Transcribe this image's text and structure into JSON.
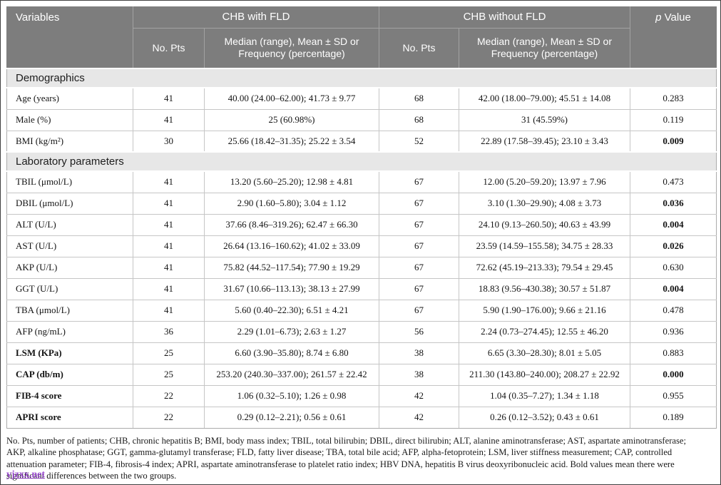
{
  "table": {
    "header": {
      "variables": "Variables",
      "group_with": "CHB with FLD",
      "group_without": "CHB without FLD",
      "p_italic": "p",
      "p_rest": " Value",
      "no_pts": "No. Pts",
      "median_label": "Median (range), Mean ± SD or Frequency (percentage)"
    },
    "sections": [
      {
        "title": "Demographics",
        "rows": [
          {
            "variable": "Age (years)",
            "bold_variable": false,
            "n_fld": "41",
            "val_fld": "40.00 (24.00–62.00); 41.73 ± 9.77",
            "n_nofld": "68",
            "val_nofld": "42.00 (18.00–79.00); 45.51 ± 14.08",
            "p": "0.283",
            "bold_p": false
          },
          {
            "variable": "Male (%)",
            "bold_variable": false,
            "n_fld": "41",
            "val_fld": "25 (60.98%)",
            "n_nofld": "68",
            "val_nofld": "31 (45.59%)",
            "p": "0.119",
            "bold_p": false
          },
          {
            "variable": "BMI (kg/m²)",
            "bold_variable": false,
            "n_fld": "30",
            "val_fld": "25.66 (18.42–31.35); 25.22 ± 3.54",
            "n_nofld": "52",
            "val_nofld": "22.89 (17.58–39.45); 23.10 ± 3.43",
            "p": "0.009",
            "bold_p": true
          }
        ]
      },
      {
        "title": "Laboratory parameters",
        "rows": [
          {
            "variable": "TBIL (μmol/L)",
            "bold_variable": false,
            "n_fld": "41",
            "val_fld": "13.20 (5.60–25.20); 12.98 ± 4.81",
            "n_nofld": "67",
            "val_nofld": "12.00 (5.20–59.20); 13.97 ± 7.96",
            "p": "0.473",
            "bold_p": false
          },
          {
            "variable": "DBIL (μmol/L)",
            "bold_variable": false,
            "n_fld": "41",
            "val_fld": "2.90 (1.60–5.80); 3.04 ± 1.12",
            "n_nofld": "67",
            "val_nofld": "3.10 (1.30–29.90); 4.08 ± 3.73",
            "p": "0.036",
            "bold_p": true
          },
          {
            "variable": "ALT (U/L)",
            "bold_variable": false,
            "n_fld": "41",
            "val_fld": "37.66 (8.46–319.26); 62.47 ± 66.30",
            "n_nofld": "67",
            "val_nofld": "24.10 (9.13–260.50); 40.63 ± 43.99",
            "p": "0.004",
            "bold_p": true
          },
          {
            "variable": "AST (U/L)",
            "bold_variable": false,
            "n_fld": "41",
            "val_fld": "26.64 (13.16–160.62); 41.02 ± 33.09",
            "n_nofld": "67",
            "val_nofld": "23.59 (14.59–155.58); 34.75 ± 28.33",
            "p": "0.026",
            "bold_p": true
          },
          {
            "variable": "AKP (U/L)",
            "bold_variable": false,
            "n_fld": "41",
            "val_fld": "75.82 (44.52–117.54); 77.90 ± 19.29",
            "n_nofld": "67",
            "val_nofld": "72.62 (45.19–213.33); 79.54 ± 29.45",
            "p": "0.630",
            "bold_p": false
          },
          {
            "variable": "GGT (U/L)",
            "bold_variable": false,
            "n_fld": "41",
            "val_fld": "31.67 (10.66–113.13); 38.13 ± 27.99",
            "n_nofld": "67",
            "val_nofld": "18.83 (9.56–430.38); 30.57 ± 51.87",
            "p": "0.004",
            "bold_p": true
          },
          {
            "variable": "TBA (μmol/L)",
            "bold_variable": false,
            "n_fld": "41",
            "val_fld": "5.60 (0.40–22.30); 6.51 ± 4.21",
            "n_nofld": "67",
            "val_nofld": "5.90 (1.90–176.00); 9.66 ± 21.16",
            "p": "0.478",
            "bold_p": false
          },
          {
            "variable": "AFP (ng/mL)",
            "bold_variable": false,
            "n_fld": "36",
            "val_fld": "2.29 (1.01–6.73); 2.63 ± 1.27",
            "n_nofld": "56",
            "val_nofld": "2.24 (0.73–274.45); 12.55 ± 46.20",
            "p": "0.936",
            "bold_p": false
          },
          {
            "variable": "LSM (KPa)",
            "bold_variable": true,
            "n_fld": "25",
            "val_fld": "6.60 (3.90–35.80); 8.74 ± 6.80",
            "n_nofld": "38",
            "val_nofld": "6.65 (3.30–28.30); 8.01 ± 5.05",
            "p": "0.883",
            "bold_p": false
          },
          {
            "variable": "CAP (db/m)",
            "bold_variable": true,
            "n_fld": "25",
            "val_fld": "253.20 (240.30–337.00); 261.57 ± 22.42",
            "n_nofld": "38",
            "val_nofld": "211.30 (143.80–240.00); 208.27 ± 22.92",
            "p": "0.000",
            "bold_p": true
          },
          {
            "variable": "FIB-4 score",
            "bold_variable": true,
            "n_fld": "22",
            "val_fld": "1.06 (0.32–5.10); 1.26 ± 0.98",
            "n_nofld": "42",
            "val_nofld": "1.04 (0.35–7.27); 1.34 ± 1.18",
            "p": "0.955",
            "bold_p": false
          },
          {
            "variable": "APRI score",
            "bold_variable": true,
            "n_fld": "22",
            "val_fld": "0.29 (0.12–2.21); 0.56 ± 0.61",
            "n_nofld": "42",
            "val_nofld": "0.26 (0.12–3.52); 0.43 ± 0.61",
            "p": "0.189",
            "bold_p": false
          }
        ]
      }
    ]
  },
  "footnote": {
    "lines": [
      "No. Pts, number of patients; CHB, chronic hepatitis B; BMI, body mass index; TBIL, total bilirubin; DBIL, direct bilirubin; ALT, alanine aminotransferase; AST, aspartate aminotransferase;",
      "AKP, alkaline phosphatase; GGT, gamma-glutamyl transferase; FLD, fatty liver disease; TBA, total bile acid; AFP, alpha-fetoprotein; LSM, liver stiffness measurement; CAP, controlled",
      "attenuation parameter; FIB-4, fibrosis-4 index; APRI, aspartate aminotransferase to platelet ratio index; HBV DNA, hepatitis B virus deoxyribonucleic acid. Bold values mean there were",
      "significant differences between the two groups."
    ],
    "watermark": "yjzxx.net"
  },
  "colors": {
    "header_bg": "#7d7d7d",
    "header_text": "#ffffff",
    "section_bg": "#e7e7e7",
    "grid_line": "#c6c6c6",
    "watermark": "#8b2fc9"
  }
}
